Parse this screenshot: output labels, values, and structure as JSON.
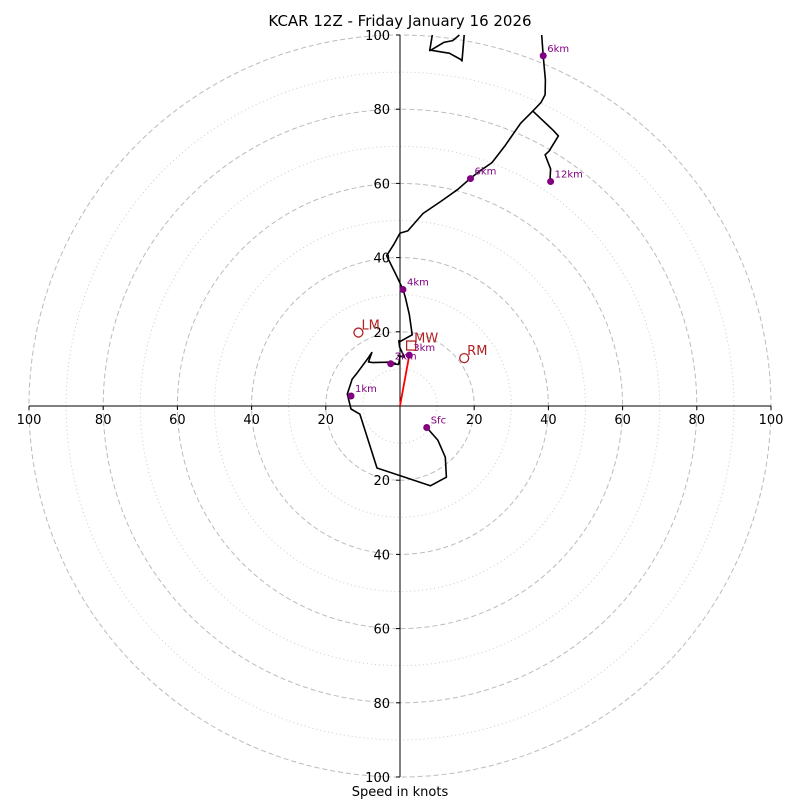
{
  "chart_data": {
    "type": "hodograph",
    "title": "KCAR 12Z - Friday January 16 2026",
    "xlabel": "Speed in knots",
    "range": [
      -100,
      100
    ],
    "ring_major": [
      20,
      40,
      60,
      80,
      100
    ],
    "ring_minor": [
      10,
      30,
      50,
      70,
      90
    ],
    "x_tick_labels": [
      "100",
      "80",
      "60",
      "40",
      "20",
      "20",
      "40",
      "60",
      "80",
      "100"
    ],
    "x_tick_values": [
      -100,
      -80,
      -60,
      -40,
      -20,
      20,
      40,
      60,
      80,
      100
    ],
    "y_tick_labels": [
      "100",
      "80",
      "60",
      "40",
      "20",
      "20",
      "40",
      "60",
      "80",
      "100"
    ],
    "y_tick_values": [
      100,
      80,
      60,
      40,
      20,
      -20,
      -40,
      -60,
      -80,
      -100
    ],
    "colors": {
      "trace": "#000000",
      "height_marker": "#800080",
      "storm_motion": "#b22222",
      "shear_vector": "#ff0000",
      "ring": "#bbbbbb"
    },
    "trace": [
      [
        7.2,
        -5.8
      ],
      [
        10.2,
        -9.2
      ],
      [
        12.2,
        -13.8
      ],
      [
        12.5,
        -19.2
      ],
      [
        8.2,
        -21.5
      ],
      [
        -6.2,
        -16.7
      ],
      [
        -10.8,
        -2.2
      ],
      [
        -13.2,
        -0.8
      ],
      [
        -14.2,
        3.2
      ],
      [
        -12.9,
        7.2
      ],
      [
        -11.4,
        9.1
      ],
      [
        -8.6,
        12.9
      ],
      [
        -7.6,
        14.4
      ],
      [
        -8.5,
        11.9
      ],
      [
        -7.3,
        11.7
      ],
      [
        -3.2,
        11.8
      ],
      [
        -1.3,
        11.5
      ],
      [
        -2.5,
        11.4
      ],
      [
        -0.4,
        11.2
      ],
      [
        0.0,
        13.2
      ],
      [
        -0.5,
        13.7
      ],
      [
        1.2,
        13.1
      ],
      [
        -0.1,
        15.9
      ],
      [
        -0.3,
        17.6
      ],
      [
        -0.3,
        17.2
      ],
      [
        3.3,
        19.2
      ],
      [
        2.5,
        24.7
      ],
      [
        1.5,
        29.0
      ],
      [
        0.9,
        31.2
      ],
      [
        -0.9,
        35.0
      ],
      [
        -3.6,
        40.5
      ],
      [
        -1.6,
        43.7
      ],
      [
        0.0,
        46.6
      ],
      [
        2.1,
        47.2
      ],
      [
        6.2,
        51.9
      ],
      [
        11.5,
        55.5
      ],
      [
        15.6,
        58.4
      ],
      [
        18.9,
        61.3
      ],
      [
        21.6,
        63.4
      ],
      [
        24.8,
        65.6
      ],
      [
        28.4,
        70.3
      ],
      [
        32.5,
        76.2
      ],
      [
        35.8,
        79.5
      ],
      [
        38.0,
        81.8
      ],
      [
        39.1,
        83.9
      ],
      [
        39.2,
        87.9
      ],
      [
        38.6,
        94.4
      ],
      [
        38.2,
        100.0
      ]
    ],
    "trace_upper": [
      [
        17.3,
        100.0
      ],
      [
        16.7,
        93.0
      ],
      [
        16.4,
        93.4
      ],
      [
        13.3,
        95.1
      ],
      [
        11.3,
        95.4
      ],
      [
        8.3,
        95.9
      ],
      [
        8.0,
        95.8
      ],
      [
        8.7,
        100.0
      ]
    ],
    "trace_high": [
      [
        35.8,
        79.5
      ],
      [
        41.3,
        74.3
      ],
      [
        42.7,
        72.8
      ],
      [
        40.2,
        68.7
      ],
      [
        39.1,
        67.7
      ],
      [
        40.6,
        63.9
      ],
      [
        40.4,
        60.5
      ]
    ],
    "trace_hook": [
      [
        8.3,
        95.9
      ],
      [
        11.8,
        98.0
      ],
      [
        14.2,
        98.5
      ],
      [
        16.0,
        100.0
      ]
    ],
    "height_markers": [
      {
        "label": "Sfc",
        "u": 7.2,
        "v": -5.8
      },
      {
        "label": "1km",
        "u": -13.2,
        "v": 2.7
      },
      {
        "label": "2km",
        "u": -2.5,
        "v": 11.4
      },
      {
        "label": "3km",
        "u": 2.5,
        "v": 13.7
      },
      {
        "label": "4km",
        "u": 0.8,
        "v": 31.4
      },
      {
        "label": "6km",
        "u": 19.0,
        "v": 61.3
      },
      {
        "label": "6km",
        "u": 38.6,
        "v": 94.4
      },
      {
        "label": "12km",
        "u": 40.6,
        "v": 60.5
      }
    ],
    "storm_motion": [
      {
        "label": "LM",
        "u": -11.2,
        "v": 19.8,
        "marker": "circle"
      },
      {
        "label": "MW",
        "u": 3.0,
        "v": 16.3,
        "marker": "square"
      },
      {
        "label": "RM",
        "u": 17.3,
        "v": 12.9,
        "marker": "circle"
      }
    ],
    "shear_vector": {
      "from": [
        0,
        0
      ],
      "to": [
        2.5,
        13.7
      ]
    }
  }
}
